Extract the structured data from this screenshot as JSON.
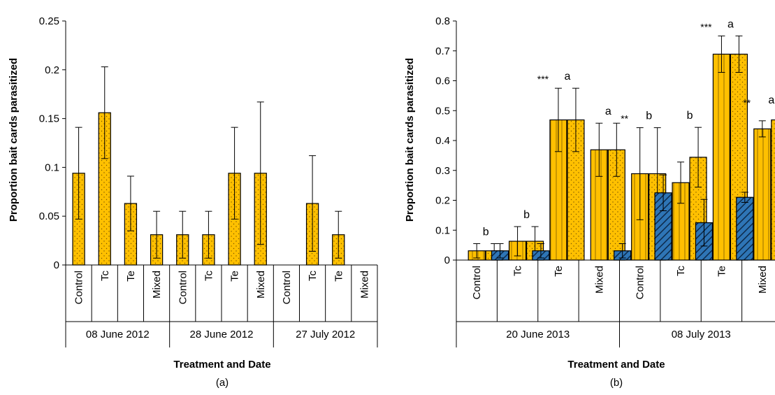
{
  "colors": {
    "orange": "#FFC000",
    "blue": "#2E75B6",
    "dots": "#7a5a00",
    "outline": "#000000"
  },
  "chart_data": [
    {
      "type": "bar",
      "panel_label": "(a)",
      "ylabel": "Proportion bait cards parasitized",
      "xlabel": "Treatment and Date",
      "ylim": [
        0,
        0.25
      ],
      "yticks": [
        "0",
        "0.05",
        "0.1",
        "0.15",
        "0.2",
        "0.25"
      ],
      "categories": [
        "Control",
        "Tc",
        "Te",
        "Mixed",
        "Control",
        "Tc",
        "Te",
        "Mixed",
        "Control",
        "Tc",
        "Te",
        "Mixed"
      ],
      "groups": [
        "08 June 2012",
        "28 June 2012",
        "27 July 2012"
      ],
      "series": [
        {
          "values": [
            0.094,
            0.156,
            0.063,
            0.031,
            0.031,
            0.031,
            0.094,
            0.094,
            0,
            0.063,
            0.031,
            0
          ],
          "errors": [
            0.047,
            0.047,
            0.028,
            0.024,
            0.024,
            0.024,
            0.047,
            0.073,
            0,
            0.049,
            0.024,
            0
          ]
        }
      ]
    },
    {
      "type": "bar",
      "panel_label": "(b)",
      "ylabel": "Proportion bait cards  parasitized",
      "xlabel": "Treatment and Date",
      "ylim": [
        0,
        0.8
      ],
      "yticks": [
        "0",
        "0.1",
        "0.2",
        "0.3",
        "0.4",
        "0.5",
        "0.6",
        "0.7",
        "0.8"
      ],
      "categories": [
        "Control",
        "Tc",
        "Te",
        "Mixed",
        "Control",
        "Tc",
        "Te",
        "Mixed"
      ],
      "groups": [
        "20 June 2013",
        "08 July 2013"
      ],
      "series": [
        {
          "values": [
            0,
            0.031,
            0.031,
            0,
            0.031,
            0.225,
            0.125,
            0.21
          ],
          "errors": [
            0,
            0.024,
            0.024,
            0,
            0.024,
            0.06,
            0.078,
            0.017
          ]
        },
        {
          "values": [
            0.031,
            0.063,
            0.469,
            0.369,
            0.289,
            0.259,
            0.689,
            0.439
          ],
          "errors": [
            0.024,
            0.049,
            0.106,
            0.089,
            0.154,
            0.069,
            0.061,
            0.027
          ]
        },
        {
          "values": [
            0.031,
            0.063,
            0.469,
            0.369,
            0.289,
            0.344,
            0.689,
            0.469
          ],
          "errors": [
            0.024,
            0.049,
            0.106,
            0.089,
            0.154,
            0.1,
            0.061,
            0.027
          ]
        }
      ],
      "annotations": {
        "letters": [
          "b",
          "b",
          "a",
          "a",
          "b",
          "b",
          "a",
          "a"
        ],
        "significance": [
          "",
          "",
          "***",
          "",
          "**",
          "",
          "***",
          "**"
        ]
      }
    }
  ]
}
